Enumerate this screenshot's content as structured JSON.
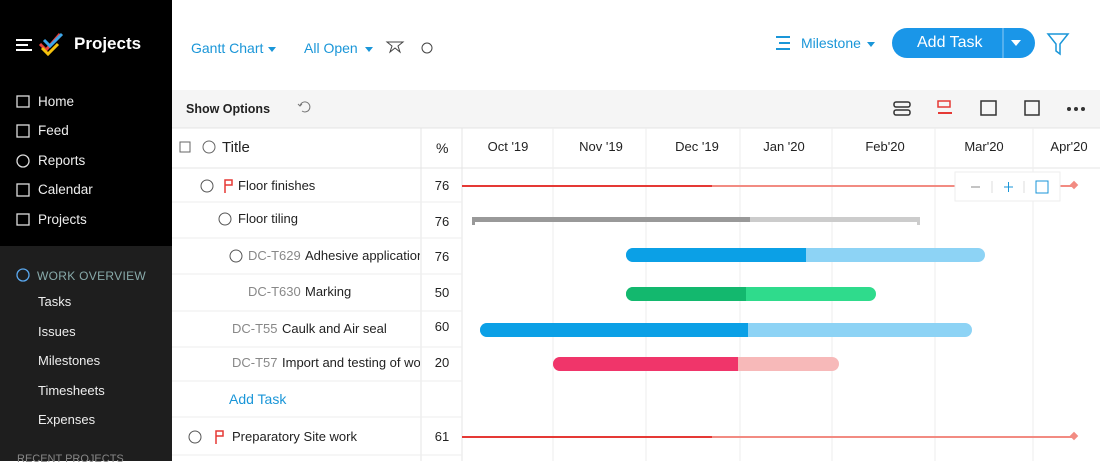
{
  "sidebar": {
    "app_name": "Projects",
    "nav": [
      "Home",
      "Feed",
      "Reports",
      "Calendar",
      "Projects"
    ],
    "section": "WORK OVERVIEW",
    "section_items": [
      "Tasks",
      "Issues",
      "Milestones",
      "Timesheets",
      "Expenses"
    ],
    "recent": "RECENT PROJECTS"
  },
  "header": {
    "breadcrumb": [
      "Gantt Chart",
      "All Open"
    ],
    "view": "Milestone",
    "add_button": "Add Task"
  },
  "toolbar": {
    "show_options": "Show Options"
  },
  "table": {
    "columns": [
      "Title",
      "%"
    ],
    "months": [
      "Oct '19",
      "Nov '19",
      "Dec '19",
      "Jan '20",
      "Feb'20",
      "Mar'20",
      "Apr'20"
    ],
    "rows": [
      {
        "title": "Floor finishes",
        "percent": 76
      },
      {
        "title": "Floor tiling",
        "percent": 76
      },
      {
        "id": "DC-T629",
        "title": "Adhesive application",
        "percent": 76
      },
      {
        "id": "DC-T630",
        "title": "Marking",
        "percent": 50
      },
      {
        "id": "DC-T55",
        "title": "Caulk and Air seal",
        "percent": 60
      },
      {
        "id": "DC-T57",
        "title": "Import and testing of woo..",
        "percent": 20
      },
      {
        "title": "Preparatory Site work",
        "percent": 61
      }
    ],
    "add_task": "Add Task"
  }
}
